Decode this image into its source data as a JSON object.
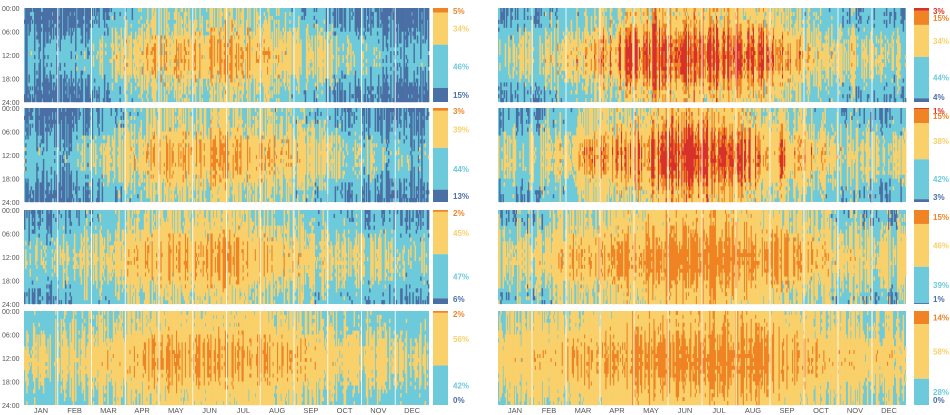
{
  "colors": {
    "dark_blue": "#4a6fa5",
    "light_blue": "#6ccadb",
    "yellow": "#f9d06a",
    "orange": "#f08324",
    "red": "#d8302a",
    "separator": "#ffffff"
  },
  "chart_data": {
    "type": "heatmap",
    "title": "",
    "x_axis": {
      "months": [
        "JAN",
        "FEB",
        "MAR",
        "APR",
        "MAY",
        "JUN",
        "JUL",
        "AUG",
        "SEP",
        "OCT",
        "NOV",
        "DEC"
      ]
    },
    "y_axis": {
      "hour_ticks": [
        "00:00",
        "06:00",
        "12:00",
        "18:00",
        "24:00"
      ]
    },
    "category_order": [
      "dark_blue",
      "light_blue",
      "yellow",
      "orange",
      "red"
    ],
    "panels": [
      {
        "id": "left-1",
        "column": "left",
        "row": 0,
        "season_bias": [
          -0.6,
          -0.6,
          -0.35,
          0.05,
          0.3,
          0.35,
          0.5,
          0.25,
          0.1,
          -0.15,
          -0.35,
          -0.6
        ],
        "shares": [
          {
            "category": "orange",
            "percent": 5,
            "label": "5%"
          },
          {
            "category": "yellow",
            "percent": 34,
            "label": "34%"
          },
          {
            "category": "light_blue",
            "percent": 46,
            "label": "46%"
          },
          {
            "category": "dark_blue",
            "percent": 15,
            "label": "15%"
          }
        ]
      },
      {
        "id": "left-2",
        "column": "left",
        "row": 1,
        "season_bias": [
          -0.6,
          -0.6,
          -0.35,
          0.05,
          0.35,
          0.4,
          0.5,
          0.3,
          0.1,
          -0.15,
          -0.35,
          -0.55
        ],
        "shares": [
          {
            "category": "orange",
            "percent": 3,
            "label": "3%"
          },
          {
            "category": "yellow",
            "percent": 39,
            "label": "39%"
          },
          {
            "category": "light_blue",
            "percent": 44,
            "label": "44%"
          },
          {
            "category": "dark_blue",
            "percent": 13,
            "label": "13%"
          }
        ]
      },
      {
        "id": "left-3",
        "column": "left",
        "row": 2,
        "season_bias": [
          -0.4,
          -0.3,
          -0.1,
          0.15,
          0.4,
          0.45,
          0.5,
          0.35,
          0.15,
          -0.05,
          -0.2,
          -0.35
        ],
        "shares": [
          {
            "category": "orange",
            "percent": 2,
            "label": "2%"
          },
          {
            "category": "yellow",
            "percent": 45,
            "label": "45%"
          },
          {
            "category": "light_blue",
            "percent": 47,
            "label": "47%"
          },
          {
            "category": "dark_blue",
            "percent": 6,
            "label": "6%"
          }
        ]
      },
      {
        "id": "left-4",
        "column": "left",
        "row": 3,
        "season_bias": [
          -0.3,
          -0.2,
          0.0,
          0.2,
          0.45,
          0.5,
          0.55,
          0.45,
          0.3,
          0.1,
          -0.1,
          -0.25
        ],
        "shares": [
          {
            "category": "orange",
            "percent": 2,
            "label": "2%"
          },
          {
            "category": "yellow",
            "percent": 56,
            "label": "56%"
          },
          {
            "category": "light_blue",
            "percent": 42,
            "label": "42%"
          },
          {
            "category": "dark_blue",
            "percent": 0,
            "label": "0%"
          }
        ]
      },
      {
        "id": "right-1",
        "column": "right",
        "row": 0,
        "season_bias": [
          -0.4,
          -0.3,
          -0.05,
          0.2,
          0.45,
          0.6,
          0.65,
          0.55,
          0.35,
          0.1,
          -0.15,
          -0.35
        ],
        "shares": [
          {
            "category": "red",
            "percent": 3,
            "label": "3%"
          },
          {
            "category": "orange",
            "percent": 15,
            "label": "15%"
          },
          {
            "category": "yellow",
            "percent": 34,
            "label": "34%"
          },
          {
            "category": "light_blue",
            "percent": 44,
            "label": "44%"
          },
          {
            "category": "dark_blue",
            "percent": 4,
            "label": "4%"
          }
        ]
      },
      {
        "id": "right-2",
        "column": "right",
        "row": 1,
        "season_bias": [
          -0.4,
          -0.3,
          -0.05,
          0.2,
          0.45,
          0.6,
          0.65,
          0.55,
          0.35,
          0.1,
          -0.15,
          -0.35
        ],
        "shares": [
          {
            "category": "red",
            "percent": 1,
            "label": "1%"
          },
          {
            "category": "orange",
            "percent": 15,
            "label": "15%"
          },
          {
            "category": "yellow",
            "percent": 38,
            "label": "38%"
          },
          {
            "category": "light_blue",
            "percent": 42,
            "label": "42%"
          },
          {
            "category": "dark_blue",
            "percent": 3,
            "label": "3%"
          }
        ]
      },
      {
        "id": "right-3",
        "column": "right",
        "row": 2,
        "season_bias": [
          -0.3,
          -0.2,
          0.05,
          0.25,
          0.45,
          0.6,
          0.65,
          0.6,
          0.4,
          0.15,
          -0.1,
          -0.25
        ],
        "shares": [
          {
            "category": "orange",
            "percent": 15,
            "label": "15%"
          },
          {
            "category": "yellow",
            "percent": 46,
            "label": "46%"
          },
          {
            "category": "light_blue",
            "percent": 39,
            "label": "39%"
          },
          {
            "category": "dark_blue",
            "percent": 1,
            "label": "1%"
          }
        ]
      },
      {
        "id": "right-4",
        "column": "right",
        "row": 3,
        "season_bias": [
          -0.25,
          -0.15,
          0.1,
          0.3,
          0.5,
          0.6,
          0.65,
          0.6,
          0.45,
          0.2,
          -0.05,
          -0.2
        ],
        "shares": [
          {
            "category": "orange",
            "percent": 14,
            "label": "14%"
          },
          {
            "category": "yellow",
            "percent": 58,
            "label": "58%"
          },
          {
            "category": "light_blue",
            "percent": 28,
            "label": "28%"
          },
          {
            "category": "dark_blue",
            "percent": 0,
            "label": "0%"
          }
        ]
      }
    ]
  }
}
